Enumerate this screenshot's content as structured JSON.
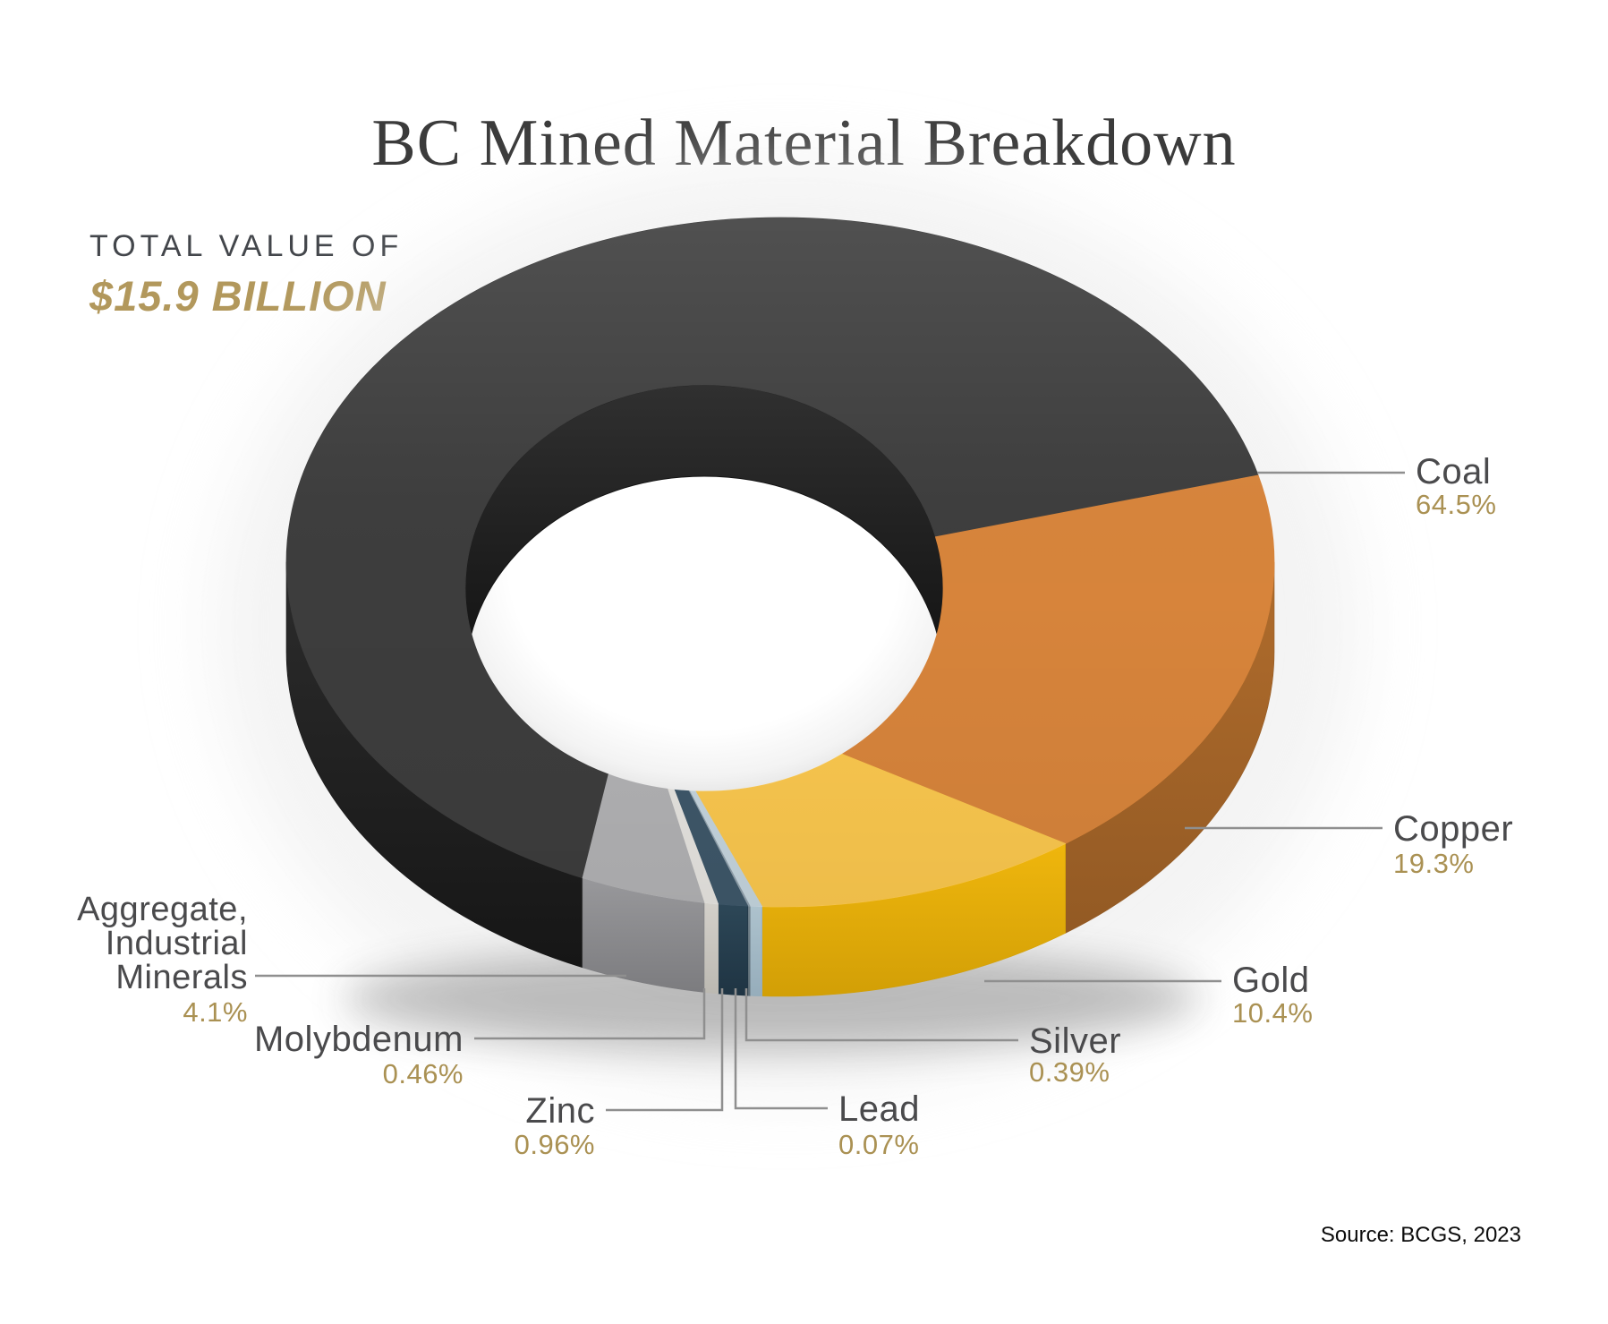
{
  "title": "BC Mined Material Breakdown",
  "total": {
    "label": "TOTAL VALUE OF",
    "value": "$15.9 BILLION"
  },
  "source": "Source: BCGS, 2023",
  "colors": {
    "accent_gold": "#aa9153",
    "total_value_gold": "#b2985c",
    "label_gray": "#4a4a4c",
    "leader_line": "#8f8f8f",
    "title_color": "#3b3b3b",
    "background": "#ffffff"
  },
  "chart_data": {
    "type": "pie",
    "subtype": "3d-donut",
    "title": "BC Mined Material Breakdown",
    "total_label": "TOTAL VALUE OF",
    "total_value": "$15.9 BILLION",
    "source": "Source: BCGS, 2023",
    "direction": "clockwise",
    "rotation_start_deg": 203.6,
    "legend_position": "callouts-around-chart",
    "slices": [
      {
        "id": "coal",
        "label": "Coal",
        "value_pct": 64.5,
        "display": "64.5%",
        "color": "#3d3d3d",
        "color_side": "#2c2c2c",
        "color_side_dark": "#161616"
      },
      {
        "id": "copper",
        "label": "Copper",
        "value_pct": 19.3,
        "display": "19.3%",
        "color": "#d7843b",
        "color_side": "#b06c2c",
        "color_side_dark": "#935a24"
      },
      {
        "id": "gold",
        "label": "Gold",
        "value_pct": 10.4,
        "display": "10.4%",
        "color": "#fac74e",
        "color_side": "#efb60d",
        "color_side_dark": "#d29f06"
      },
      {
        "id": "silver",
        "label": "Silver",
        "value_pct": 0.39,
        "display": "0.39%",
        "color": "#c4d4dd",
        "color_side": "#adc2cd",
        "color_side_dark": "#96adbb"
      },
      {
        "id": "lead",
        "label": "Lead",
        "value_pct": 0.07,
        "display": "0.07%",
        "color": "#90a0ab",
        "color_side": "#76868f",
        "color_side_dark": "#5f6e77"
      },
      {
        "id": "zinc",
        "label": "Zinc",
        "value_pct": 0.96,
        "display": "0.96%",
        "color": "#3e5769",
        "color_side": "#2d4757",
        "color_side_dark": "#1f3443"
      },
      {
        "id": "molybdenum",
        "label": "Molybdenum",
        "value_pct": 0.46,
        "display": "0.46%",
        "color": "#e5e3df",
        "color_side": "#d3d0ca",
        "color_side_dark": "#bcb9b2"
      },
      {
        "id": "aggregate",
        "label": "Aggregate, Industrial Minerals",
        "label_lines": [
          "Aggregate,",
          "Industrial",
          "Minerals"
        ],
        "value_pct": 4.1,
        "display": "4.1%",
        "color": "#b1b1b3",
        "color_side": "#98989b",
        "color_side_dark": "#7c7c7f"
      }
    ]
  }
}
